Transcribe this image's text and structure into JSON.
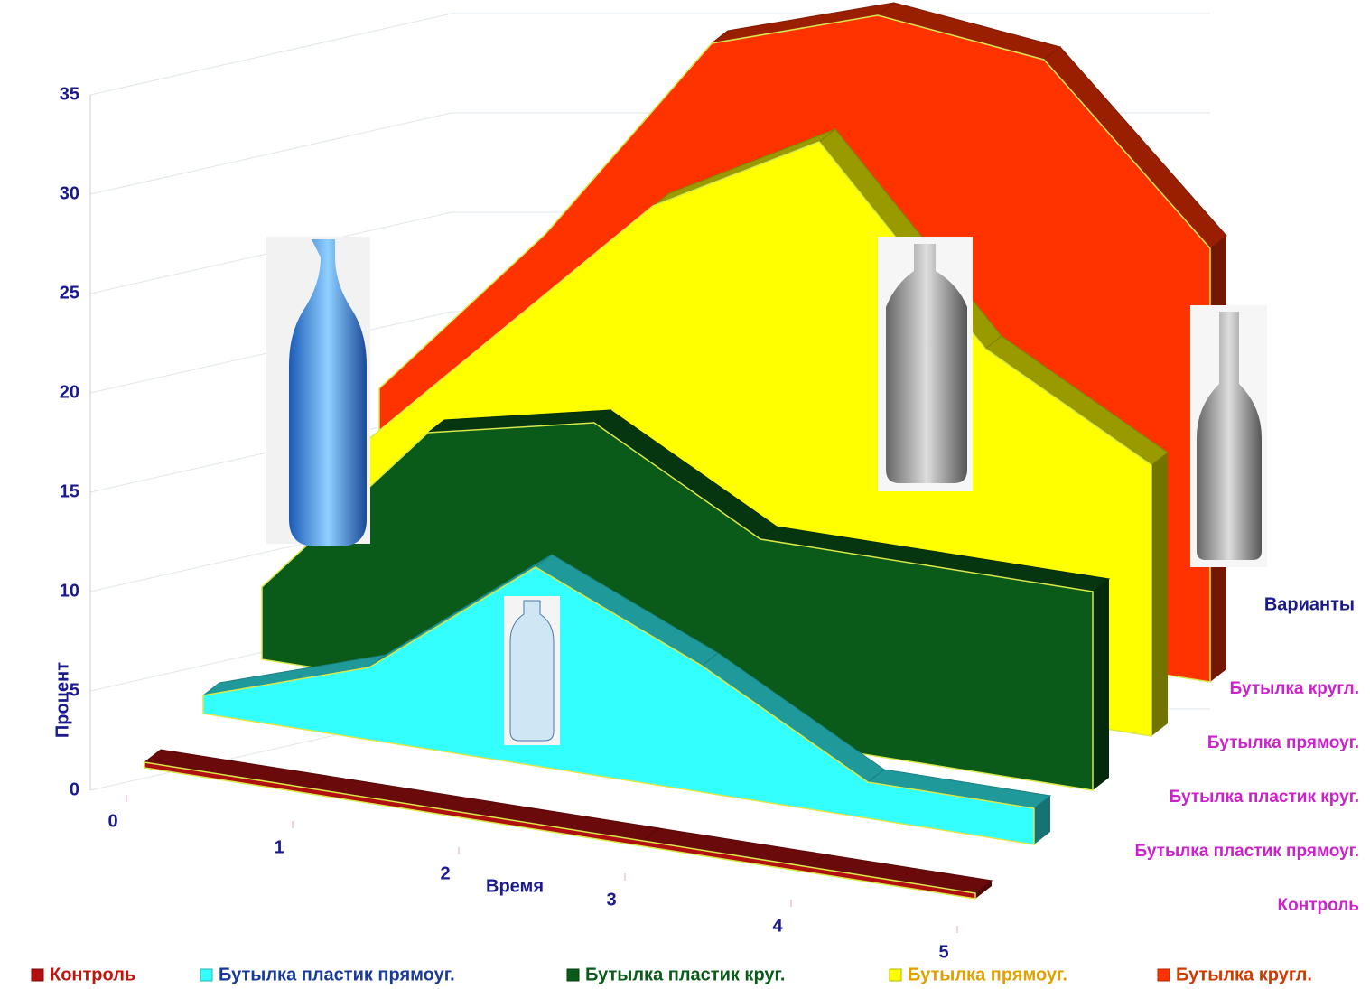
{
  "chart_data": {
    "type": "area3d",
    "x_label": "Время",
    "y_label": "Процент",
    "depth_label": "Варианты",
    "x": [
      0,
      1,
      2,
      3,
      4,
      5
    ],
    "xlim": [
      0,
      5
    ],
    "xticks": [
      0,
      1,
      2,
      3,
      4,
      5
    ],
    "ylim": [
      0,
      35
    ],
    "yticks": [
      0,
      5,
      10,
      15,
      20,
      25,
      30,
      35
    ],
    "grid": true,
    "series": [
      {
        "name": "Контроль",
        "color": "#b01010",
        "values": [
          0.3,
          0.3,
          0.3,
          0.3,
          0.3,
          0.3
        ]
      },
      {
        "name": "Бутылка пластик прямоуг.",
        "color": "#33ffff",
        "values": [
          1,
          4,
          11,
          7,
          2,
          2
        ]
      },
      {
        "name": "Бутылка пластик круг.",
        "color": "#0a5a1a",
        "values": [
          4,
          14,
          16,
          11,
          11,
          11
        ]
      },
      {
        "name": "Бутылка прямоуг.",
        "color": "#ffff00",
        "values": [
          7,
          16,
          25,
          30,
          20,
          15
        ]
      },
      {
        "name": "Бутылка кругл.",
        "color": "#ff3300",
        "values": [
          9,
          19,
          31,
          34,
          33,
          24
        ]
      }
    ]
  }
}
